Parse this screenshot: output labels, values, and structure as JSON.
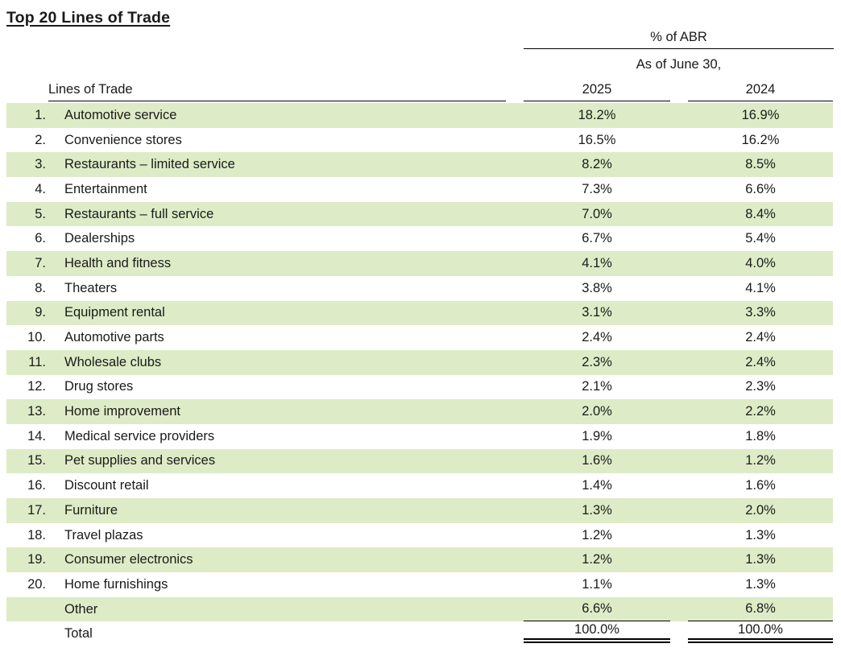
{
  "title": "Top 20 Lines of Trade",
  "table": {
    "group_header": "% of ABR",
    "sub_header": "As of June 30,",
    "columns": {
      "lines_of_trade": "Lines of Trade",
      "year_2025": "2025",
      "year_2024": "2024"
    },
    "rows": [
      {
        "rank": "1.",
        "name": "Automotive service",
        "abr_2025": "18.2%",
        "abr_2024": "16.9%"
      },
      {
        "rank": "2.",
        "name": "Convenience stores",
        "abr_2025": "16.5%",
        "abr_2024": "16.2%"
      },
      {
        "rank": "3.",
        "name": "Restaurants – limited service",
        "abr_2025": "8.2%",
        "abr_2024": "8.5%"
      },
      {
        "rank": "4.",
        "name": "Entertainment",
        "abr_2025": "7.3%",
        "abr_2024": "6.6%"
      },
      {
        "rank": "5.",
        "name": "Restaurants – full service",
        "abr_2025": "7.0%",
        "abr_2024": "8.4%"
      },
      {
        "rank": "6.",
        "name": "Dealerships",
        "abr_2025": "6.7%",
        "abr_2024": "5.4%"
      },
      {
        "rank": "7.",
        "name": "Health and fitness",
        "abr_2025": "4.1%",
        "abr_2024": "4.0%"
      },
      {
        "rank": "8.",
        "name": "Theaters",
        "abr_2025": "3.8%",
        "abr_2024": "4.1%"
      },
      {
        "rank": "9.",
        "name": "Equipment rental",
        "abr_2025": "3.1%",
        "abr_2024": "3.3%"
      },
      {
        "rank": "10.",
        "name": "Automotive parts",
        "abr_2025": "2.4%",
        "abr_2024": "2.4%"
      },
      {
        "rank": "11.",
        "name": "Wholesale clubs",
        "abr_2025": "2.3%",
        "abr_2024": "2.4%"
      },
      {
        "rank": "12.",
        "name": "Drug stores",
        "abr_2025": "2.1%",
        "abr_2024": "2.3%"
      },
      {
        "rank": "13.",
        "name": "Home improvement",
        "abr_2025": "2.0%",
        "abr_2024": "2.2%"
      },
      {
        "rank": "14.",
        "name": "Medical service providers",
        "abr_2025": "1.9%",
        "abr_2024": "1.8%"
      },
      {
        "rank": "15.",
        "name": "Pet supplies and services",
        "abr_2025": "1.6%",
        "abr_2024": "1.2%"
      },
      {
        "rank": "16.",
        "name": "Discount retail",
        "abr_2025": "1.4%",
        "abr_2024": "1.6%"
      },
      {
        "rank": "17.",
        "name": "Furniture",
        "abr_2025": "1.3%",
        "abr_2024": "2.0%"
      },
      {
        "rank": "18.",
        "name": "Travel plazas",
        "abr_2025": "1.2%",
        "abr_2024": "1.3%"
      },
      {
        "rank": "19.",
        "name": "Consumer electronics",
        "abr_2025": "1.2%",
        "abr_2024": "1.3%"
      },
      {
        "rank": "20.",
        "name": "Home furnishings",
        "abr_2025": "1.1%",
        "abr_2024": "1.3%"
      },
      {
        "rank": "",
        "name": "Other",
        "abr_2025": "6.6%",
        "abr_2024": "6.8%",
        "is_other": true
      },
      {
        "rank": "",
        "name": "Total",
        "abr_2025": "100.0%",
        "abr_2024": "100.0%",
        "is_total": true
      }
    ]
  },
  "colors": {
    "stripe_green": "#ddecc6",
    "text": "#1a1a1a",
    "rule": "#000000",
    "background": "#ffffff"
  }
}
